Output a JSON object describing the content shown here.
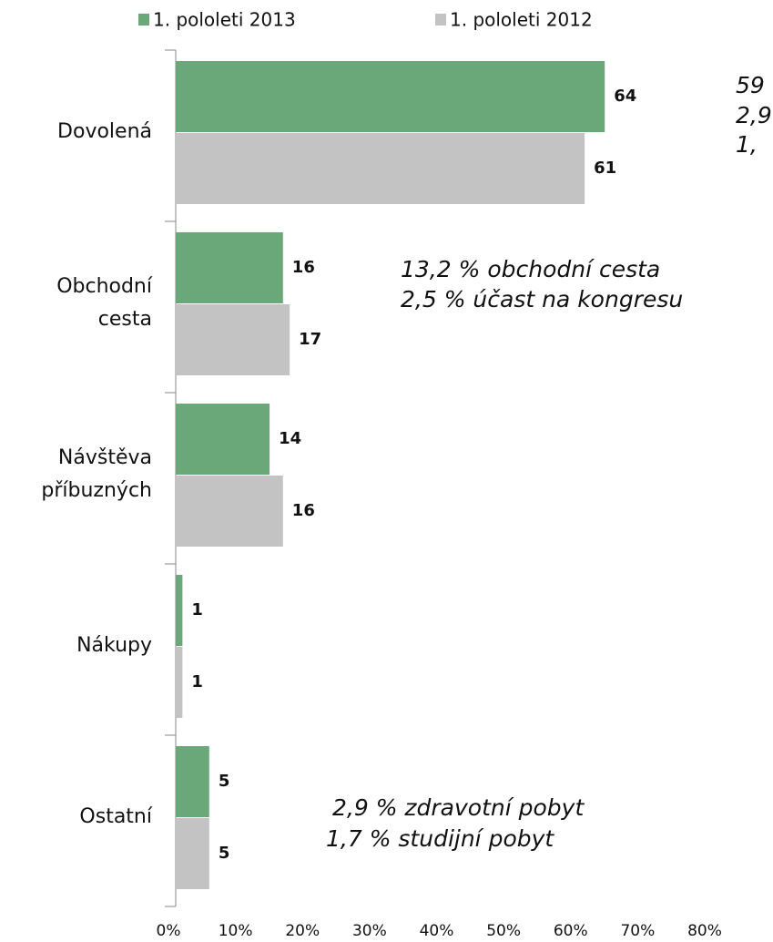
{
  "chart_data": {
    "type": "bar",
    "orientation": "horizontal",
    "categories": [
      "Dovolená",
      "Obchodní cesta",
      "Návštěva příbuzných",
      "Nákupy",
      "Ostatní"
    ],
    "series": [
      {
        "name": "1. pololeti 2013",
        "color": "#6aa87a",
        "values": [
          64,
          16,
          14,
          1,
          5
        ]
      },
      {
        "name": "1. pololeti 2012",
        "color": "#c3c3c3",
        "values": [
          61,
          17,
          16,
          1,
          5
        ]
      }
    ],
    "xlim": [
      0,
      80
    ],
    "xticks": [
      {
        "value": 0,
        "label": "0%"
      },
      {
        "value": 10,
        "label": "10%"
      },
      {
        "value": 20,
        "label": "20%"
      },
      {
        "value": 30,
        "label": "30%"
      },
      {
        "value": 40,
        "label": "40%"
      },
      {
        "value": 50,
        "label": "50%"
      },
      {
        "value": 60,
        "label": "60%"
      },
      {
        "value": 70,
        "label": "70%"
      },
      {
        "value": 80,
        "label": "80%"
      }
    ],
    "legend": "top",
    "annotations": [
      "59",
      "2,9",
      "1,",
      "13,2 % obchodní cesta",
      "2,5 % účast na kongresu",
      "2,9 % zdravotní pobyt",
      "1,7 % studijní pobyt"
    ]
  }
}
